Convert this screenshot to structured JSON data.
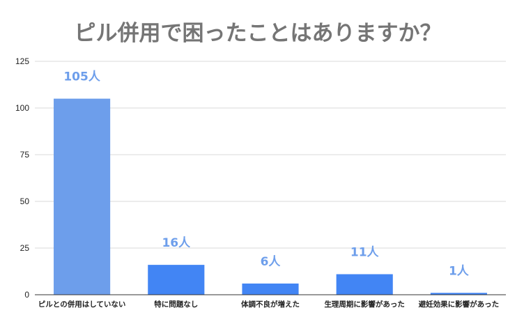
{
  "chart_data": {
    "type": "bar",
    "title": "ピル併用で困ったことはありますか？",
    "xlabel": "",
    "ylabel": "",
    "categories": [
      "ピルとの併用はしていない",
      "特に問題なし",
      "体調不良が増えた",
      "生理周期に影響があった",
      "避妊効果に影響があった"
    ],
    "values": [
      105,
      16,
      6,
      11,
      1
    ],
    "data_labels": [
      "105人",
      "16人",
      "6人",
      "11人",
      "1人"
    ],
    "ylim": [
      0,
      125
    ],
    "yticks": [
      "0",
      "25",
      "50",
      "75",
      "100",
      "125"
    ],
    "grid": true,
    "legend": "none",
    "colors": {
      "bars": [
        "#6d9eeb",
        "#4285f4",
        "#4285f4",
        "#4285f4",
        "#4285f4"
      ],
      "data_labels": "#6d9eeb",
      "title": "#757575"
    }
  }
}
